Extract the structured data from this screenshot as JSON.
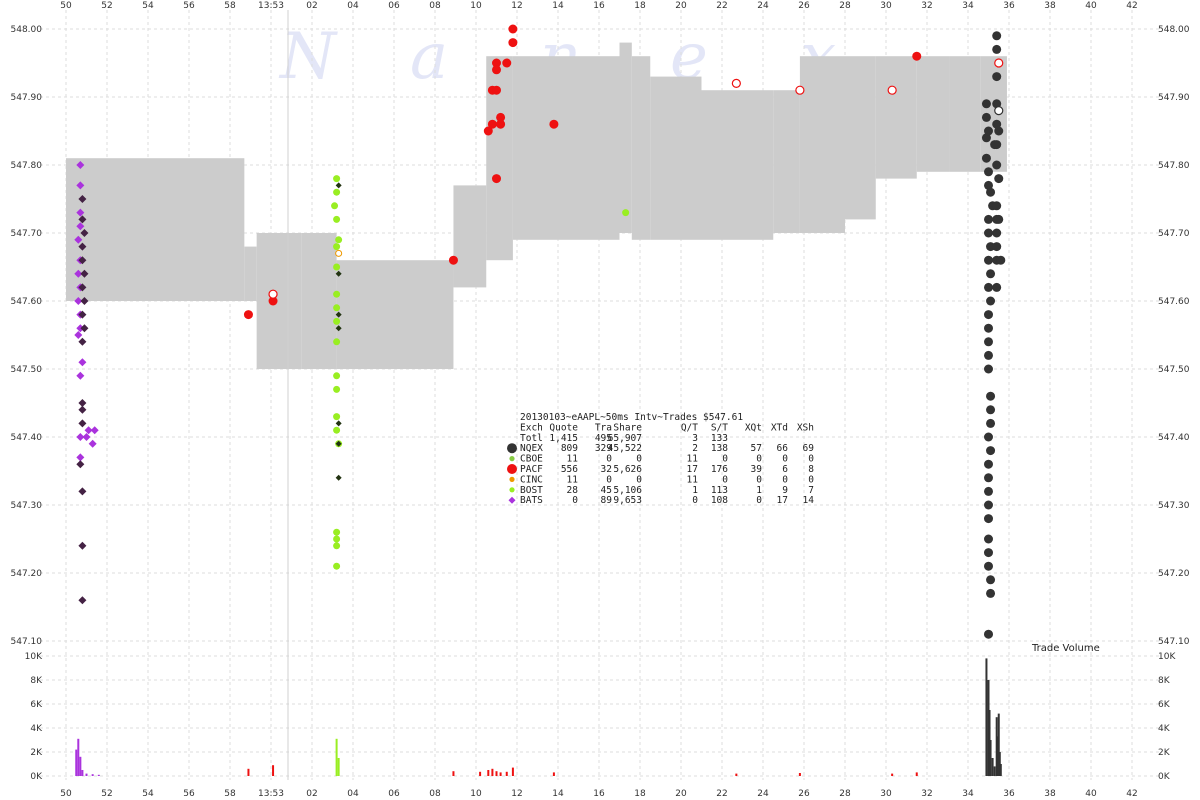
{
  "chart_data": {
    "type": "scatter",
    "title": "20130103~eAAPL~50ms Intv~Trades $547.61",
    "watermark": [
      "N",
      "a",
      "n",
      "e",
      "x"
    ],
    "x_ticks_top": [
      "50",
      "52",
      "54",
      "56",
      "58",
      "13:53",
      "02",
      "04",
      "06",
      "08",
      "10",
      "12",
      "14",
      "16",
      "18",
      "20",
      "22",
      "24",
      "26",
      "28",
      "30",
      "32",
      "34",
      "36",
      "38",
      "40",
      "42"
    ],
    "x_ticks_bottom": [
      "50",
      "52",
      "54",
      "56",
      "58",
      "13:53",
      "02",
      "04",
      "06",
      "08",
      "10",
      "12",
      "14",
      "16",
      "18",
      "20",
      "22",
      "24",
      "26",
      "28",
      "30",
      "32",
      "34",
      "36",
      "38",
      "40",
      "42"
    ],
    "x_range": [
      49.3,
      42.5
    ],
    "y_price_ticks": [
      "548.00",
      "547.90",
      "547.80",
      "547.70",
      "547.60",
      "547.50",
      "547.40",
      "547.30",
      "547.20",
      "547.10"
    ],
    "ylim_price": [
      547.1,
      548.0
    ],
    "y_volume_ticks": [
      "10K",
      "8K",
      "6K",
      "4K",
      "2K",
      "0K"
    ],
    "ylim_volume": [
      0,
      10000
    ],
    "volume_label": "Trade Volume",
    "colors": {
      "NQEX": "#333333",
      "CBOE": "#88cc44",
      "PACF": "#ee1111",
      "CINC": "#ee9900",
      "BOST": "#99ee22",
      "BATS": "#aa33dd",
      "BATS_dark": "#442244",
      "quote_band": "#cccccc",
      "grid": "#dddddd"
    },
    "legend": {
      "header": [
        "Exch",
        "Quote",
        "Tra",
        "Share",
        "Q/T",
        "S/T",
        "XQt",
        "XTd",
        "XSh"
      ],
      "total": [
        "Totl",
        "1,415",
        "495",
        "65,907",
        "3",
        "133",
        "",
        "",
        ""
      ],
      "rows": [
        {
          "exch": "NQEX",
          "cells": [
            "809",
            "329",
            "45,522",
            "2",
            "138",
            "57",
            "66",
            "69"
          ],
          "color": "#333333",
          "shape": "circle-lg"
        },
        {
          "exch": "CBOE",
          "cells": [
            "11",
            "0",
            "0",
            "11",
            "0",
            "0",
            "0",
            "0"
          ],
          "color": "#88cc44",
          "shape": "circle-sm"
        },
        {
          "exch": "PACF",
          "cells": [
            "556",
            "32",
            "5,626",
            "17",
            "176",
            "39",
            "6",
            "8"
          ],
          "color": "#ee1111",
          "shape": "circle-lg"
        },
        {
          "exch": "CINC",
          "cells": [
            "11",
            "0",
            "0",
            "11",
            "0",
            "0",
            "0",
            "0"
          ],
          "color": "#ee9900",
          "shape": "circle-sm"
        },
        {
          "exch": "BOST",
          "cells": [
            "28",
            "45",
            "5,106",
            "1",
            "113",
            "1",
            "9",
            "7"
          ],
          "color": "#99ee22",
          "shape": "circle-sm"
        },
        {
          "exch": "BATS",
          "cells": [
            "0",
            "89",
            "9,653",
            "0",
            "108",
            "0",
            "17",
            "14"
          ],
          "color": "#aa33dd",
          "shape": "diamond"
        }
      ]
    },
    "quote_band": [
      {
        "t0": 50.0,
        "t1": 58.7,
        "lo": 547.6,
        "hi": 547.81
      },
      {
        "t0": 58.7,
        "t1": 59.3,
        "lo": 547.6,
        "hi": 547.68
      },
      {
        "t0": 59.3,
        "t1": 61.5,
        "lo": 547.5,
        "hi": 547.7
      },
      {
        "t0": 61.5,
        "t1": 63.2,
        "lo": 547.5,
        "hi": 547.7
      },
      {
        "t0": 63.2,
        "t1": 68.9,
        "lo": 547.5,
        "hi": 547.66
      },
      {
        "t0": 68.9,
        "t1": 70.5,
        "lo": 547.62,
        "hi": 547.77
      },
      {
        "t0": 70.5,
        "t1": 71.8,
        "lo": 547.66,
        "hi": 547.96
      },
      {
        "t0": 71.8,
        "t1": 73.0,
        "lo": 547.69,
        "hi": 547.96
      },
      {
        "t0": 73.0,
        "t1": 77.0,
        "lo": 547.69,
        "hi": 547.96
      },
      {
        "t0": 77.0,
        "t1": 77.6,
        "lo": 547.7,
        "hi": 547.98
      },
      {
        "t0": 77.6,
        "t1": 78.5,
        "lo": 547.69,
        "hi": 547.96
      },
      {
        "t0": 78.5,
        "t1": 81.0,
        "lo": 547.69,
        "hi": 547.93
      },
      {
        "t0": 81.0,
        "t1": 84.5,
        "lo": 547.69,
        "hi": 547.91
      },
      {
        "t0": 84.5,
        "t1": 85.8,
        "lo": 547.7,
        "hi": 547.91
      },
      {
        "t0": 85.8,
        "t1": 88.0,
        "lo": 547.7,
        "hi": 547.96
      },
      {
        "t0": 88.0,
        "t1": 89.5,
        "lo": 547.72,
        "hi": 547.96
      },
      {
        "t0": 89.5,
        "t1": 91.5,
        "lo": 547.78,
        "hi": 547.96
      },
      {
        "t0": 91.5,
        "t1": 93.1,
        "lo": 547.79,
        "hi": 547.96
      },
      {
        "t0": 93.1,
        "t1": 94.6,
        "lo": 547.79,
        "hi": 547.96
      },
      {
        "t0": 94.6,
        "t1": 95.9,
        "lo": 547.79,
        "hi": 547.96
      }
    ],
    "trades": {
      "BATS": [
        [
          50.7,
          547.8
        ],
        [
          50.7,
          547.77
        ],
        [
          50.7,
          547.73
        ],
        [
          50.7,
          547.71
        ],
        [
          50.6,
          547.69
        ],
        [
          50.7,
          547.66
        ],
        [
          50.6,
          547.64
        ],
        [
          50.7,
          547.62
        ],
        [
          50.6,
          547.6
        ],
        [
          50.7,
          547.58
        ],
        [
          50.7,
          547.56
        ],
        [
          50.6,
          547.55
        ],
        [
          50.8,
          547.51
        ],
        [
          50.7,
          547.49
        ],
        [
          50.7,
          547.37
        ],
        [
          50.7,
          547.4
        ],
        [
          51.1,
          547.41
        ],
        [
          51.4,
          547.41
        ],
        [
          51.0,
          547.4
        ],
        [
          51.3,
          547.39
        ]
      ],
      "BATS_dark": [
        [
          50.8,
          547.75
        ],
        [
          50.8,
          547.72
        ],
        [
          50.9,
          547.7
        ],
        [
          50.8,
          547.68
        ],
        [
          50.8,
          547.66
        ],
        [
          50.9,
          547.64
        ],
        [
          50.8,
          547.62
        ],
        [
          50.9,
          547.6
        ],
        [
          50.8,
          547.58
        ],
        [
          50.9,
          547.56
        ],
        [
          50.8,
          547.54
        ],
        [
          50.8,
          547.45
        ],
        [
          50.8,
          547.44
        ],
        [
          50.8,
          547.42
        ],
        [
          50.7,
          547.36
        ],
        [
          50.8,
          547.32
        ],
        [
          50.8,
          547.24
        ],
        [
          50.8,
          547.16
        ]
      ],
      "BOST": [
        [
          63.2,
          547.78
        ],
        [
          63.2,
          547.76
        ],
        [
          63.1,
          547.74
        ],
        [
          63.2,
          547.72
        ],
        [
          63.3,
          547.69
        ],
        [
          63.2,
          547.68
        ],
        [
          63.2,
          547.65
        ],
        [
          63.2,
          547.61
        ],
        [
          63.2,
          547.59
        ],
        [
          63.2,
          547.57
        ],
        [
          63.2,
          547.54
        ],
        [
          63.2,
          547.49
        ],
        [
          63.2,
          547.47
        ],
        [
          63.2,
          547.43
        ],
        [
          63.2,
          547.41
        ],
        [
          63.3,
          547.39
        ],
        [
          63.2,
          547.26
        ],
        [
          63.2,
          547.25
        ],
        [
          63.2,
          547.24
        ],
        [
          63.2,
          547.21
        ],
        [
          77.3,
          547.73
        ]
      ],
      "BOST_dark": [
        [
          63.3,
          547.77
        ],
        [
          63.3,
          547.64
        ],
        [
          63.3,
          547.58
        ],
        [
          63.3,
          547.56
        ],
        [
          63.3,
          547.42
        ],
        [
          63.3,
          547.39
        ],
        [
          63.3,
          547.34
        ]
      ],
      "PACF": [
        [
          58.9,
          547.58
        ],
        [
          60.1,
          547.61
        ],
        [
          60.1,
          547.6
        ],
        [
          68.9,
          547.66
        ],
        [
          70.6,
          547.85
        ],
        [
          70.8,
          547.86
        ],
        [
          70.8,
          547.91
        ],
        [
          71.0,
          547.91
        ],
        [
          71.0,
          547.95
        ],
        [
          71.0,
          547.94
        ],
        [
          71.2,
          547.87
        ],
        [
          71.2,
          547.86
        ],
        [
          71.5,
          547.95
        ],
        [
          71.8,
          547.98
        ],
        [
          71.8,
          548.0
        ],
        [
          71.0,
          547.78
        ],
        [
          73.8,
          547.86
        ],
        [
          91.5,
          547.96
        ]
      ],
      "PACF_open": [
        [
          60.1,
          547.61
        ],
        [
          82.7,
          547.92
        ],
        [
          85.8,
          547.91
        ],
        [
          90.3,
          547.91
        ],
        [
          95.5,
          547.95
        ]
      ],
      "NQEX": [
        [
          94.9,
          547.89
        ],
        [
          94.9,
          547.87
        ],
        [
          94.9,
          547.84
        ],
        [
          94.9,
          547.81
        ],
        [
          95.0,
          547.79
        ],
        [
          95.0,
          547.77
        ],
        [
          95.1,
          547.76
        ],
        [
          95.2,
          547.74
        ],
        [
          95.4,
          547.74
        ],
        [
          95.0,
          547.72
        ],
        [
          95.0,
          547.7
        ],
        [
          95.1,
          547.68
        ],
        [
          95.0,
          547.66
        ],
        [
          95.1,
          547.64
        ],
        [
          95.0,
          547.62
        ],
        [
          95.1,
          547.6
        ],
        [
          95.0,
          547.58
        ],
        [
          95.0,
          547.56
        ],
        [
          95.0,
          547.54
        ],
        [
          95.0,
          547.52
        ],
        [
          95.0,
          547.5
        ],
        [
          95.1,
          547.46
        ],
        [
          95.1,
          547.44
        ],
        [
          95.1,
          547.42
        ],
        [
          95.0,
          547.4
        ],
        [
          95.1,
          547.38
        ],
        [
          95.0,
          547.36
        ],
        [
          95.0,
          547.34
        ],
        [
          95.0,
          547.32
        ],
        [
          95.0,
          547.3
        ],
        [
          95.0,
          547.28
        ],
        [
          95.0,
          547.25
        ],
        [
          95.0,
          547.23
        ],
        [
          95.0,
          547.21
        ],
        [
          95.1,
          547.19
        ],
        [
          95.1,
          547.17
        ],
        [
          95.0,
          547.11
        ],
        [
          95.4,
          547.99
        ],
        [
          95.4,
          547.97
        ],
        [
          95.4,
          547.89
        ],
        [
          95.4,
          547.86
        ],
        [
          95.4,
          547.83
        ],
        [
          95.4,
          547.8
        ],
        [
          95.4,
          547.72
        ],
        [
          95.4,
          547.7
        ],
        [
          95.4,
          547.68
        ],
        [
          95.4,
          547.66
        ],
        [
          95.4,
          547.62
        ],
        [
          95.5,
          547.72
        ],
        [
          95.6,
          547.66
        ],
        [
          95.4,
          547.93
        ],
        [
          95.3,
          547.83
        ],
        [
          95.0,
          547.85
        ],
        [
          95.5,
          547.85
        ],
        [
          95.5,
          547.78
        ]
      ],
      "NQEX_open": [
        [
          95.5,
          547.88
        ]
      ],
      "CINC_open": [
        [
          63.3,
          547.67
        ]
      ]
    },
    "volume_bars": [
      {
        "t": 50.5,
        "v": 2200,
        "c": "#aa33dd"
      },
      {
        "t": 50.6,
        "v": 3100,
        "c": "#aa33dd"
      },
      {
        "t": 50.7,
        "v": 1600,
        "c": "#aa33dd"
      },
      {
        "t": 50.8,
        "v": 500,
        "c": "#aa33dd"
      },
      {
        "t": 51.0,
        "v": 200,
        "c": "#aa33dd"
      },
      {
        "t": 51.3,
        "v": 150,
        "c": "#aa33dd"
      },
      {
        "t": 51.6,
        "v": 100,
        "c": "#aa33dd"
      },
      {
        "t": 58.9,
        "v": 600,
        "c": "#ee1111"
      },
      {
        "t": 60.1,
        "v": 900,
        "c": "#ee1111"
      },
      {
        "t": 63.2,
        "v": 3100,
        "c": "#99ee22"
      },
      {
        "t": 63.3,
        "v": 1500,
        "c": "#99ee22"
      },
      {
        "t": 68.9,
        "v": 400,
        "c": "#ee1111"
      },
      {
        "t": 70.2,
        "v": 350,
        "c": "#ee1111"
      },
      {
        "t": 70.6,
        "v": 500,
        "c": "#ee1111"
      },
      {
        "t": 70.8,
        "v": 600,
        "c": "#ee1111"
      },
      {
        "t": 71.0,
        "v": 400,
        "c": "#ee1111"
      },
      {
        "t": 71.2,
        "v": 300,
        "c": "#ee1111"
      },
      {
        "t": 71.5,
        "v": 350,
        "c": "#ee1111"
      },
      {
        "t": 71.8,
        "v": 700,
        "c": "#ee1111"
      },
      {
        "t": 73.8,
        "v": 300,
        "c": "#ee1111"
      },
      {
        "t": 82.7,
        "v": 200,
        "c": "#ee1111"
      },
      {
        "t": 85.8,
        "v": 250,
        "c": "#ee1111"
      },
      {
        "t": 90.3,
        "v": 200,
        "c": "#ee1111"
      },
      {
        "t": 91.5,
        "v": 300,
        "c": "#ee1111"
      },
      {
        "t": 94.9,
        "v": 9800,
        "c": "#333333"
      },
      {
        "t": 95.0,
        "v": 8000,
        "c": "#333333"
      },
      {
        "t": 95.05,
        "v": 5500,
        "c": "#333333"
      },
      {
        "t": 95.1,
        "v": 3000,
        "c": "#333333"
      },
      {
        "t": 95.2,
        "v": 1500,
        "c": "#333333"
      },
      {
        "t": 95.3,
        "v": 800,
        "c": "#333333"
      },
      {
        "t": 95.4,
        "v": 4900,
        "c": "#333333"
      },
      {
        "t": 95.45,
        "v": 3300,
        "c": "#333333"
      },
      {
        "t": 95.5,
        "v": 5200,
        "c": "#333333"
      },
      {
        "t": 95.55,
        "v": 2000,
        "c": "#333333"
      },
      {
        "t": 95.6,
        "v": 1000,
        "c": "#333333"
      }
    ]
  }
}
